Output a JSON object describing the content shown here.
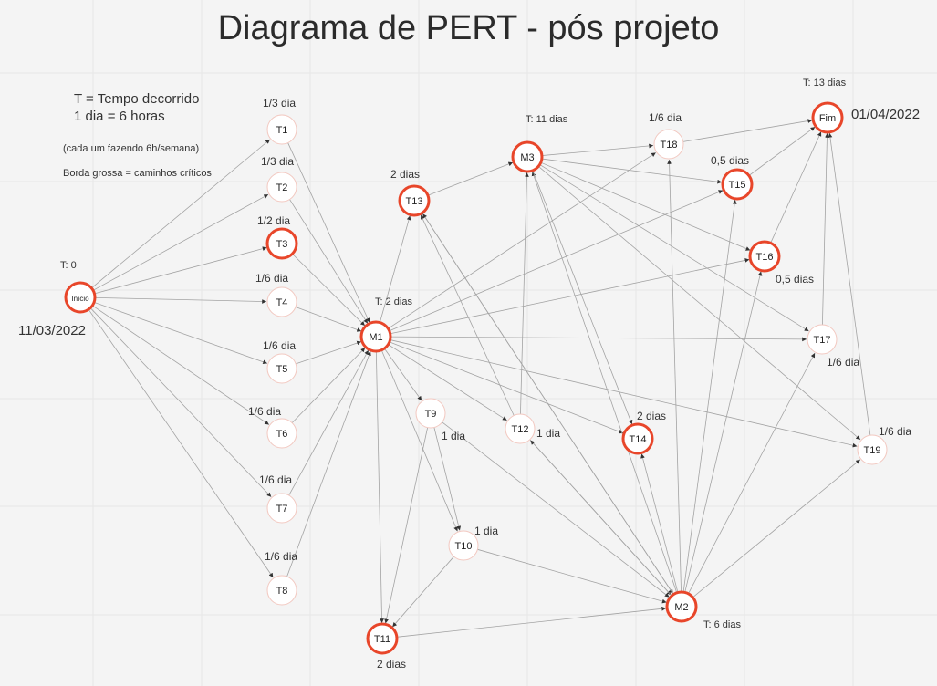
{
  "title": "Diagrama de PERT - pós projeto",
  "legend": {
    "line1": "T = Tempo decorrido",
    "line2": "1 dia = 6 horas",
    "note": "(cada um fazendo 6h/semana)",
    "critical": "Borda grossa = caminhos críticos"
  },
  "dates": {
    "start": "11/03/2022",
    "end": "01/04/2022"
  },
  "nodes": [
    {
      "id": "Inicio",
      "label": "Início",
      "critical": true
    },
    {
      "id": "T1",
      "label": "T1",
      "critical": false,
      "duration": "1/3 dia"
    },
    {
      "id": "T2",
      "label": "T2",
      "critical": false,
      "duration": "1/3 dia"
    },
    {
      "id": "T3",
      "label": "T3",
      "critical": true,
      "duration": "1/2 dia"
    },
    {
      "id": "T4",
      "label": "T4",
      "critical": false,
      "duration": "1/6 dia"
    },
    {
      "id": "T5",
      "label": "T5",
      "critical": false,
      "duration": "1/6 dia"
    },
    {
      "id": "T6",
      "label": "T6",
      "critical": false,
      "duration": "1/6 dia"
    },
    {
      "id": "T7",
      "label": "T7",
      "critical": false,
      "duration": "1/6 dia"
    },
    {
      "id": "T8",
      "label": "T8",
      "critical": false,
      "duration": "1/6 dia"
    },
    {
      "id": "M1",
      "label": "M1",
      "critical": true,
      "time": "T: 2 dias"
    },
    {
      "id": "T13",
      "label": "T13",
      "critical": true,
      "duration": "2 dias"
    },
    {
      "id": "M3",
      "label": "M3",
      "critical": true,
      "time": "T: 11 dias"
    },
    {
      "id": "T9",
      "label": "T9",
      "critical": false,
      "duration": "1 dia"
    },
    {
      "id": "T10",
      "label": "T10",
      "critical": false,
      "duration": "1 dia"
    },
    {
      "id": "T11",
      "label": "T11",
      "critical": true,
      "duration": "2 dias"
    },
    {
      "id": "T12",
      "label": "T12",
      "critical": false,
      "duration": "1 dia"
    },
    {
      "id": "T14",
      "label": "T14",
      "critical": true,
      "duration": "2 dias"
    },
    {
      "id": "M2",
      "label": "M2",
      "critical": true,
      "time": "T: 6 dias"
    },
    {
      "id": "T18",
      "label": "T18",
      "critical": false,
      "duration": "1/6 dia"
    },
    {
      "id": "T15",
      "label": "T15",
      "critical": true,
      "duration": "0,5 dias"
    },
    {
      "id": "T16",
      "label": "T16",
      "critical": true,
      "duration": "0,5 dias"
    },
    {
      "id": "T17",
      "label": "T17",
      "critical": false,
      "duration": "1/6 dia"
    },
    {
      "id": "T19",
      "label": "T19",
      "critical": false,
      "duration": "1/6 dia"
    },
    {
      "id": "Fim",
      "label": "Fim",
      "critical": true,
      "time": "T: 13 dias"
    }
  ],
  "start_time": "T: 0",
  "edges": [
    [
      "Inicio",
      "T1"
    ],
    [
      "Inicio",
      "T2"
    ],
    [
      "Inicio",
      "T3"
    ],
    [
      "Inicio",
      "T4"
    ],
    [
      "Inicio",
      "T5"
    ],
    [
      "Inicio",
      "T6"
    ],
    [
      "Inicio",
      "T7"
    ],
    [
      "Inicio",
      "T8"
    ],
    [
      "T1",
      "M1"
    ],
    [
      "T2",
      "M1"
    ],
    [
      "T3",
      "M1"
    ],
    [
      "T4",
      "M1"
    ],
    [
      "T5",
      "M1"
    ],
    [
      "T6",
      "M1"
    ],
    [
      "T7",
      "M1"
    ],
    [
      "T8",
      "M1"
    ],
    [
      "M1",
      "T13"
    ],
    [
      "M1",
      "T9"
    ],
    [
      "M1",
      "T10"
    ],
    [
      "M1",
      "T11"
    ],
    [
      "M1",
      "T12"
    ],
    [
      "M1",
      "T14"
    ],
    [
      "M1",
      "T18"
    ],
    [
      "M1",
      "T15"
    ],
    [
      "M1",
      "T16"
    ],
    [
      "M1",
      "T17"
    ],
    [
      "M1",
      "T19"
    ],
    [
      "T13",
      "M3"
    ],
    [
      "T9",
      "T10"
    ],
    [
      "T9",
      "T11"
    ],
    [
      "T10",
      "T11"
    ],
    [
      "T12",
      "T13"
    ],
    [
      "T12",
      "M3"
    ],
    [
      "T11",
      "M2"
    ],
    [
      "T10",
      "M2"
    ],
    [
      "T9",
      "M2"
    ],
    [
      "T13",
      "M2"
    ],
    [
      "T12",
      "M2"
    ],
    [
      "M2",
      "T14"
    ],
    [
      "M2",
      "T18"
    ],
    [
      "M2",
      "T15"
    ],
    [
      "M2",
      "T16"
    ],
    [
      "M2",
      "T17"
    ],
    [
      "M2",
      "T19"
    ],
    [
      "M2",
      "M3"
    ],
    [
      "M2",
      "T13"
    ],
    [
      "M2",
      "T12"
    ],
    [
      "M3",
      "T18"
    ],
    [
      "M3",
      "T15"
    ],
    [
      "M3",
      "T16"
    ],
    [
      "M3",
      "T17"
    ],
    [
      "M3",
      "T19"
    ],
    [
      "M3",
      "T14"
    ],
    [
      "T18",
      "Fim"
    ],
    [
      "T15",
      "Fim"
    ],
    [
      "T16",
      "Fim"
    ],
    [
      "T17",
      "Fim"
    ],
    [
      "T19",
      "Fim"
    ]
  ],
  "colors": {
    "critical": "#e8462a",
    "normal_border": "#f2c8c0",
    "edge": "#a3a3a3",
    "grid": "#e6e6e6"
  }
}
